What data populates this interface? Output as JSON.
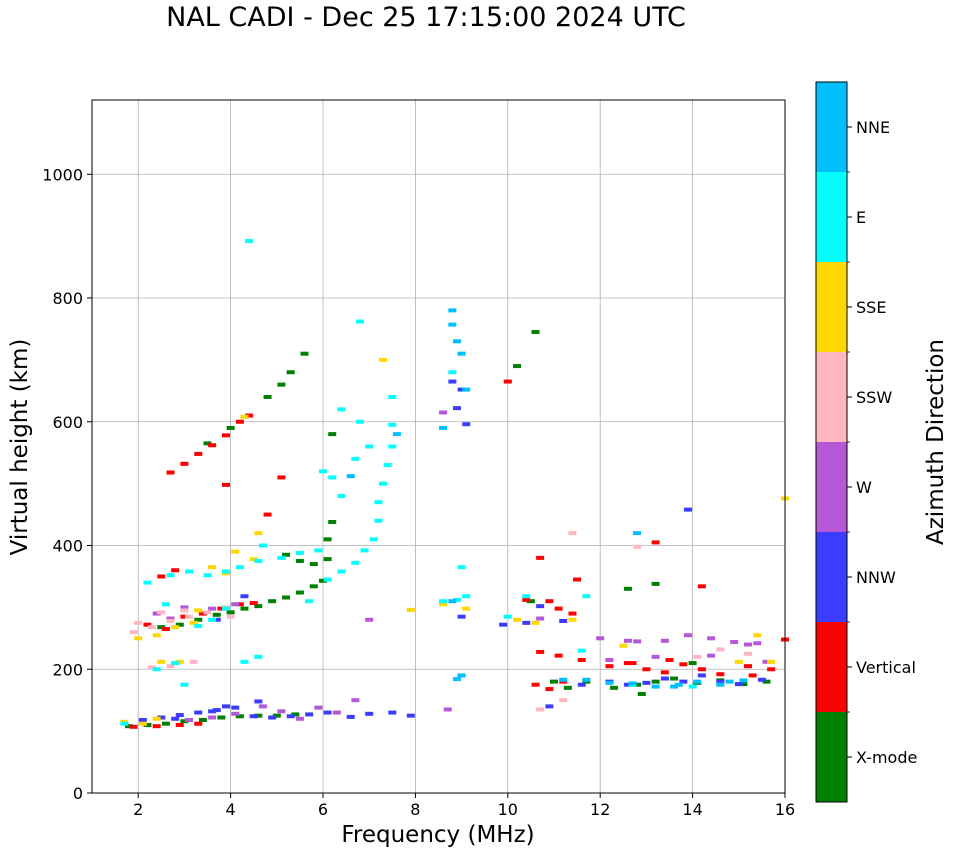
{
  "chart_data": {
    "type": "scatter",
    "title": "NAL CADI - Dec 25 17:15:00 2024 UTC",
    "xlabel": "Frequency (MHz)",
    "ylabel": "Virtual height (km)",
    "xlim": [
      1,
      16
    ],
    "ylim": [
      0,
      1120
    ],
    "xticks": [
      2,
      4,
      6,
      8,
      10,
      12,
      14,
      16
    ],
    "yticks": [
      0,
      200,
      400,
      600,
      800,
      1000
    ],
    "grid": true,
    "colorbar": {
      "label": "Azimuth Direction",
      "categories": [
        "X-mode",
        "Vertical",
        "NNW",
        "W",
        "SSW",
        "SSE",
        "E",
        "NNE"
      ],
      "colors": [
        "#008000",
        "#ff0000",
        "#3c3cff",
        "#b557d9",
        "#ffb6c1",
        "#ffd700",
        "#00ffff",
        "#00bfff"
      ]
    },
    "series": [
      {
        "name": "X-mode",
        "points": [
          [
            1.8,
            108
          ],
          [
            2.2,
            110
          ],
          [
            2.6,
            112
          ],
          [
            3.0,
            116
          ],
          [
            3.4,
            118
          ],
          [
            3.8,
            122
          ],
          [
            4.2,
            124
          ],
          [
            4.6,
            125
          ],
          [
            5.0,
            125
          ],
          [
            5.4,
            127
          ],
          [
            2.5,
            268
          ],
          [
            2.9,
            272
          ],
          [
            3.3,
            280
          ],
          [
            3.7,
            288
          ],
          [
            4.0,
            292
          ],
          [
            4.3,
            298
          ],
          [
            4.6,
            302
          ],
          [
            4.9,
            310
          ],
          [
            5.2,
            316
          ],
          [
            5.5,
            324
          ],
          [
            5.8,
            334
          ],
          [
            6.0,
            343
          ],
          [
            5.2,
            385
          ],
          [
            5.5,
            375
          ],
          [
            5.8,
            370
          ],
          [
            6.1,
            378
          ],
          [
            6.1,
            410
          ],
          [
            6.2,
            438
          ],
          [
            4.8,
            640
          ],
          [
            5.1,
            660
          ],
          [
            5.3,
            680
          ],
          [
            5.6,
            710
          ],
          [
            6.2,
            580
          ],
          [
            3.5,
            565
          ],
          [
            4.0,
            590
          ],
          [
            10.2,
            690
          ],
          [
            10.6,
            745
          ],
          [
            10.5,
            310
          ],
          [
            11.0,
            180
          ],
          [
            11.3,
            170
          ],
          [
            11.7,
            180
          ],
          [
            12.3,
            170
          ],
          [
            12.8,
            175
          ],
          [
            13.2,
            180
          ],
          [
            13.6,
            185
          ],
          [
            14.1,
            178
          ],
          [
            14.6,
            182
          ],
          [
            15.1,
            176
          ],
          [
            15.6,
            180
          ],
          [
            12.6,
            330
          ],
          [
            13.2,
            338
          ],
          [
            12.9,
            160
          ],
          [
            14.0,
            210
          ]
        ]
      },
      {
        "name": "Vertical",
        "points": [
          [
            1.9,
            107
          ],
          [
            2.4,
            108
          ],
          [
            2.9,
            110
          ],
          [
            3.3,
            112
          ],
          [
            2.5,
            350
          ],
          [
            2.8,
            360
          ],
          [
            2.7,
            518
          ],
          [
            3.0,
            532
          ],
          [
            3.3,
            548
          ],
          [
            3.6,
            562
          ],
          [
            3.9,
            578
          ],
          [
            4.2,
            600
          ],
          [
            4.4,
            610
          ],
          [
            3.9,
            498
          ],
          [
            5.1,
            510
          ],
          [
            4.8,
            450
          ],
          [
            3.0,
            285
          ],
          [
            3.4,
            290
          ],
          [
            3.8,
            298
          ],
          [
            4.2,
            305
          ],
          [
            4.5,
            307
          ],
          [
            2.2,
            272
          ],
          [
            2.6,
            265
          ],
          [
            10.0,
            665
          ],
          [
            10.4,
            312
          ],
          [
            10.9,
            310
          ],
          [
            11.1,
            298
          ],
          [
            11.4,
            290
          ],
          [
            11.5,
            345
          ],
          [
            10.7,
            380
          ],
          [
            10.6,
            175
          ],
          [
            10.9,
            168
          ],
          [
            11.2,
            180
          ],
          [
            10.7,
            228
          ],
          [
            11.1,
            222
          ],
          [
            11.6,
            215
          ],
          [
            12.2,
            205
          ],
          [
            12.6,
            210
          ],
          [
            13.0,
            200
          ],
          [
            13.4,
            195
          ],
          [
            13.8,
            208
          ],
          [
            14.2,
            200
          ],
          [
            14.6,
            192
          ],
          [
            15.2,
            205
          ],
          [
            15.7,
            200
          ],
          [
            16.0,
            248
          ],
          [
            14.2,
            334
          ],
          [
            13.2,
            405
          ],
          [
            12.7,
            210
          ],
          [
            13.5,
            215
          ],
          [
            15.3,
            190
          ]
        ]
      },
      {
        "name": "NNW",
        "points": [
          [
            2.1,
            118
          ],
          [
            2.5,
            122
          ],
          [
            2.9,
            126
          ],
          [
            3.3,
            130
          ],
          [
            3.7,
            134
          ],
          [
            4.1,
            138
          ],
          [
            4.5,
            124
          ],
          [
            4.9,
            122
          ],
          [
            5.3,
            124
          ],
          [
            5.7,
            127
          ],
          [
            6.1,
            130
          ],
          [
            6.6,
            123
          ],
          [
            7.0,
            128
          ],
          [
            7.5,
            130
          ],
          [
            7.9,
            125
          ],
          [
            3.6,
            132
          ],
          [
            2.8,
            120
          ],
          [
            3.9,
            140
          ],
          [
            4.3,
            318
          ],
          [
            3.7,
            280
          ],
          [
            8.9,
            622
          ],
          [
            9.1,
            596
          ],
          [
            9.0,
            652
          ],
          [
            8.8,
            665
          ],
          [
            9.0,
            285
          ],
          [
            9.9,
            272
          ],
          [
            10.4,
            275
          ],
          [
            10.7,
            302
          ],
          [
            11.2,
            278
          ],
          [
            10.9,
            140
          ],
          [
            11.6,
            175
          ],
          [
            12.2,
            180
          ],
          [
            12.6,
            175
          ],
          [
            13.0,
            178
          ],
          [
            13.4,
            185
          ],
          [
            13.8,
            180
          ],
          [
            14.2,
            190
          ],
          [
            14.6,
            180
          ],
          [
            15.0,
            176
          ],
          [
            15.5,
            183
          ],
          [
            13.9,
            458
          ],
          [
            4.6,
            148
          ]
        ]
      },
      {
        "name": "W",
        "points": [
          [
            2.4,
            290
          ],
          [
            2.7,
            282
          ],
          [
            3.0,
            300
          ],
          [
            3.6,
            298
          ],
          [
            4.1,
            305
          ],
          [
            3.1,
            118
          ],
          [
            3.6,
            122
          ],
          [
            4.1,
            128
          ],
          [
            4.7,
            140
          ],
          [
            5.1,
            132
          ],
          [
            5.5,
            120
          ],
          [
            5.9,
            138
          ],
          [
            6.3,
            130
          ],
          [
            6.7,
            150
          ],
          [
            7.0,
            280
          ],
          [
            8.7,
            135
          ],
          [
            8.6,
            615
          ],
          [
            10.7,
            282
          ],
          [
            12.0,
            250
          ],
          [
            12.6,
            246
          ],
          [
            13.4,
            246
          ],
          [
            13.9,
            255
          ],
          [
            14.4,
            250
          ],
          [
            14.9,
            244
          ],
          [
            15.4,
            242
          ],
          [
            12.2,
            215
          ],
          [
            13.2,
            220
          ],
          [
            14.4,
            222
          ],
          [
            15.6,
            212
          ],
          [
            15.2,
            240
          ],
          [
            12.8,
            245
          ]
        ]
      },
      {
        "name": "SSW",
        "points": [
          [
            1.9,
            260
          ],
          [
            2.3,
            268
          ],
          [
            2.7,
            278
          ],
          [
            3.1,
            285
          ],
          [
            3.5,
            292
          ],
          [
            3.9,
            300
          ],
          [
            2.0,
            275
          ],
          [
            2.5,
            292
          ],
          [
            2.3,
            203
          ],
          [
            2.7,
            205
          ],
          [
            3.2,
            212
          ],
          [
            11.4,
            420
          ],
          [
            10.7,
            135
          ],
          [
            11.2,
            150
          ],
          [
            12.8,
            398
          ],
          [
            14.1,
            220
          ],
          [
            14.6,
            232
          ],
          [
            15.2,
            225
          ],
          [
            3.0,
            295
          ],
          [
            4.0,
            285
          ]
        ]
      },
      {
        "name": "SSE",
        "points": [
          [
            2.0,
            250
          ],
          [
            2.4,
            255
          ],
          [
            2.8,
            268
          ],
          [
            3.2,
            275
          ],
          [
            1.7,
            115
          ],
          [
            2.1,
            112
          ],
          [
            2.4,
            120
          ],
          [
            2.5,
            212
          ],
          [
            2.9,
            212
          ],
          [
            3.6,
            365
          ],
          [
            3.9,
            355
          ],
          [
            4.1,
            390
          ],
          [
            4.5,
            378
          ],
          [
            4.6,
            420
          ],
          [
            4.3,
            608
          ],
          [
            7.3,
            700
          ],
          [
            7.9,
            296
          ],
          [
            8.6,
            305
          ],
          [
            9.1,
            298
          ],
          [
            10.2,
            280
          ],
          [
            10.6,
            275
          ],
          [
            11.4,
            280
          ],
          [
            12.5,
            238
          ],
          [
            15.4,
            255
          ],
          [
            15.7,
            212
          ],
          [
            16.0,
            476
          ],
          [
            15.0,
            212
          ],
          [
            3.3,
            295
          ]
        ]
      },
      {
        "name": "E",
        "points": [
          [
            1.7,
            112
          ],
          [
            2.2,
            340
          ],
          [
            2.7,
            352
          ],
          [
            3.1,
            358
          ],
          [
            3.5,
            352
          ],
          [
            3.9,
            358
          ],
          [
            4.2,
            365
          ],
          [
            4.6,
            375
          ],
          [
            5.1,
            380
          ],
          [
            5.5,
            388
          ],
          [
            5.9,
            392
          ],
          [
            6.1,
            345
          ],
          [
            6.4,
            358
          ],
          [
            6.7,
            372
          ],
          [
            6.9,
            392
          ],
          [
            7.1,
            410
          ],
          [
            7.2,
            440
          ],
          [
            7.2,
            470
          ],
          [
            7.3,
            500
          ],
          [
            7.4,
            530
          ],
          [
            7.5,
            560
          ],
          [
            7.5,
            595
          ],
          [
            7.5,
            640
          ],
          [
            6.2,
            510
          ],
          [
            6.4,
            480
          ],
          [
            6.7,
            540
          ],
          [
            7.0,
            560
          ],
          [
            6.4,
            620
          ],
          [
            6.8,
            600
          ],
          [
            5.7,
            310
          ],
          [
            3.3,
            270
          ],
          [
            3.6,
            280
          ],
          [
            2.6,
            305
          ],
          [
            3.9,
            298
          ],
          [
            4.7,
            400
          ],
          [
            4.3,
            212
          ],
          [
            4.6,
            220
          ],
          [
            4.4,
            892
          ],
          [
            6.8,
            762
          ],
          [
            8.6,
            310
          ],
          [
            8.8,
            680
          ],
          [
            8.9,
            312
          ],
          [
            9.0,
            365
          ],
          [
            9.1,
            318
          ],
          [
            10.0,
            285
          ],
          [
            10.4,
            318
          ],
          [
            11.6,
            230
          ],
          [
            11.7,
            318
          ],
          [
            12.7,
            175
          ],
          [
            14.0,
            172
          ],
          [
            2.4,
            200
          ],
          [
            3.0,
            175
          ],
          [
            2.8,
            210
          ],
          [
            6.0,
            520
          ]
        ]
      },
      {
        "name": "NNE",
        "points": [
          [
            8.8,
            780
          ],
          [
            8.8,
            757
          ],
          [
            8.9,
            730
          ],
          [
            9.0,
            710
          ],
          [
            8.8,
            310
          ],
          [
            8.6,
            590
          ],
          [
            9.1,
            652
          ],
          [
            8.9,
            184
          ],
          [
            9.0,
            190
          ],
          [
            11.2,
            183
          ],
          [
            11.7,
            183
          ],
          [
            12.2,
            178
          ],
          [
            12.7,
            177
          ],
          [
            13.2,
            172
          ],
          [
            13.7,
            175
          ],
          [
            14.1,
            180
          ],
          [
            14.6,
            175
          ],
          [
            15.1,
            182
          ],
          [
            12.8,
            420
          ],
          [
            13.6,
            172
          ],
          [
            14.8,
            180
          ],
          [
            6.6,
            512
          ],
          [
            7.6,
            580
          ]
        ]
      }
    ]
  }
}
